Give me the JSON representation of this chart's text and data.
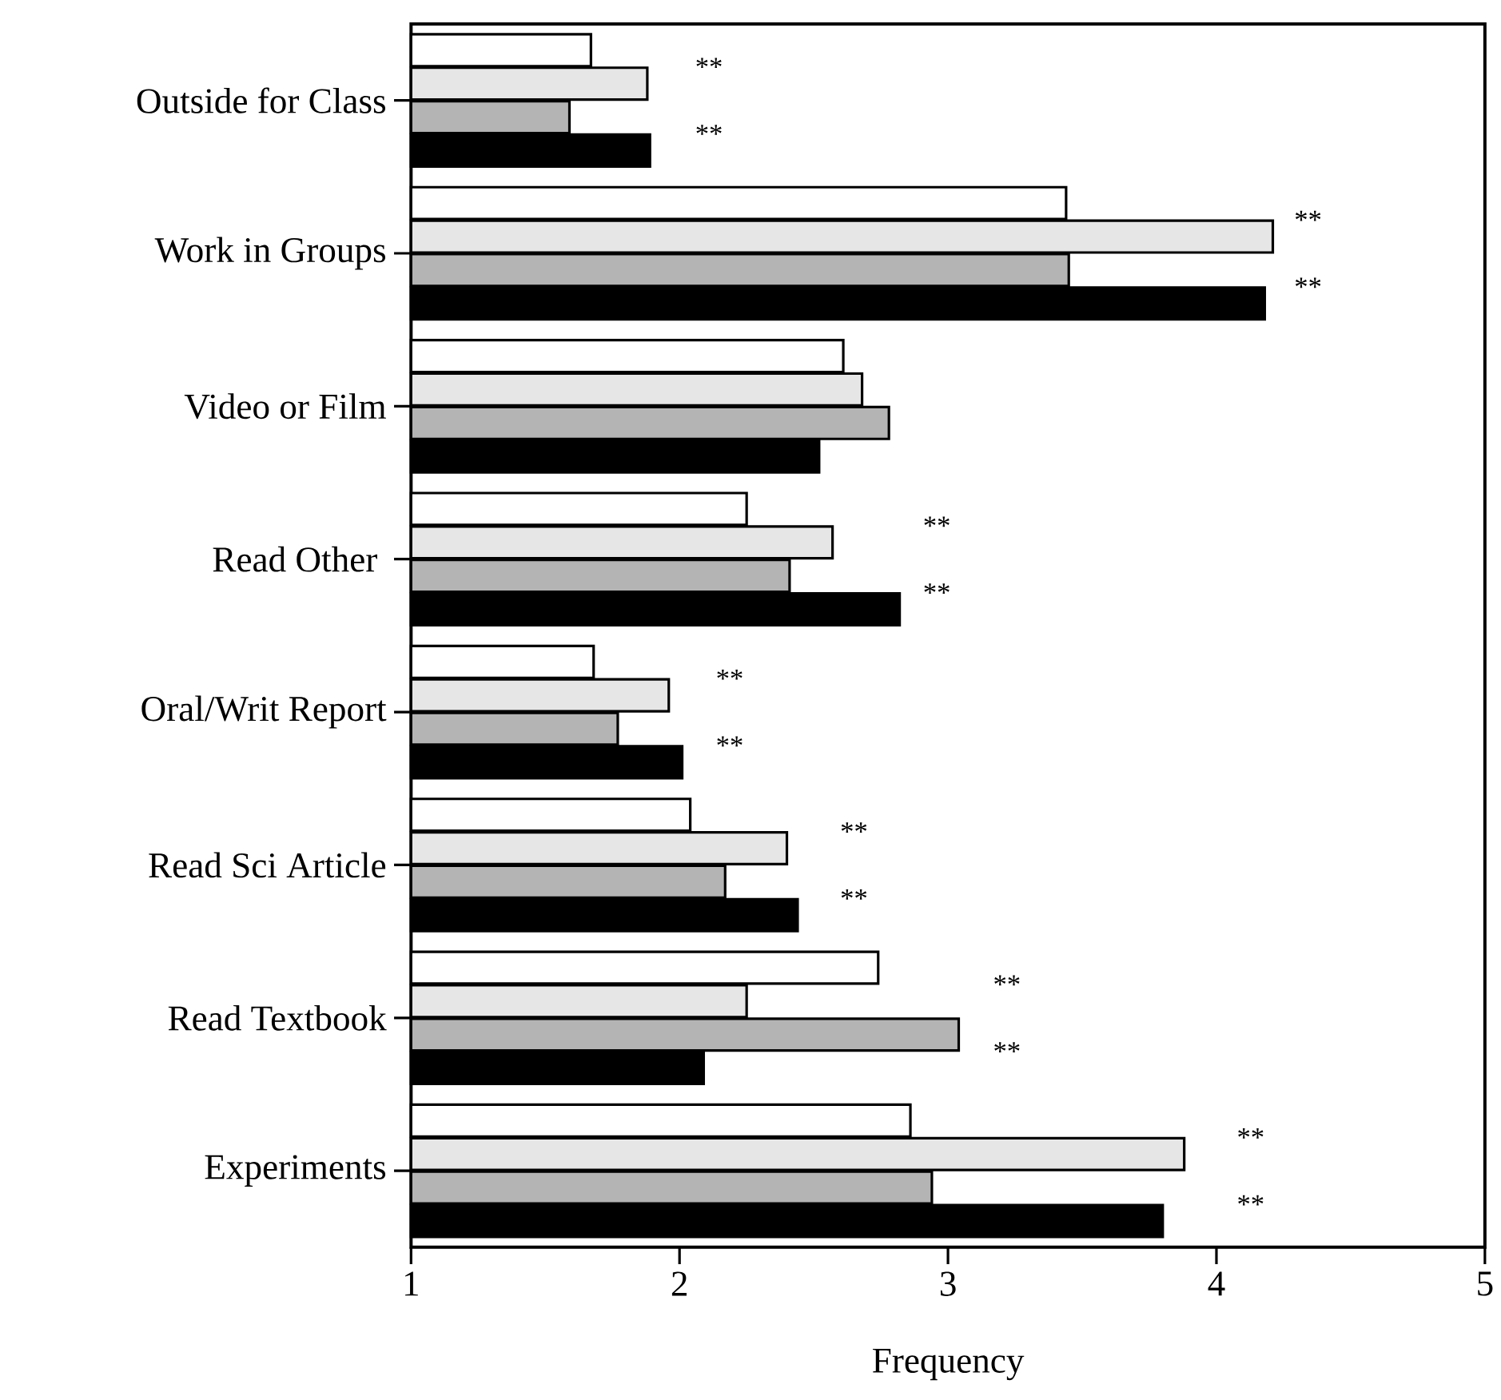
{
  "chart_data": {
    "type": "bar",
    "orientation": "horizontal",
    "xlabel": "Frequency",
    "categories": [
      "Outside for Class",
      "Work in Groups",
      "Video or Film",
      "Read Other ",
      "Oral/Writ Report",
      "Read Sci Article",
      "Read Textbook",
      "Experiments"
    ],
    "series": [
      {
        "color": "#ffffff",
        "values": [
          1.67,
          3.44,
          2.61,
          2.25,
          1.68,
          2.04,
          2.74,
          2.86
        ]
      },
      {
        "color": "#e6e6e6",
        "values": [
          1.88,
          4.21,
          2.68,
          2.57,
          1.96,
          2.4,
          2.25,
          3.88
        ]
      },
      {
        "color": "#b4b4b4",
        "values": [
          1.59,
          3.45,
          2.78,
          2.41,
          1.77,
          2.17,
          3.04,
          2.94
        ]
      },
      {
        "color": "#000000",
        "values": [
          1.89,
          4.18,
          2.52,
          2.82,
          2.01,
          2.44,
          2.09,
          3.8
        ]
      }
    ],
    "xlim": [
      1,
      5
    ],
    "xticks": [
      1,
      2,
      3,
      4,
      5
    ],
    "grid": false,
    "annotations": [
      "**",
      "**",
      "**",
      "**",
      "**",
      "**",
      "**",
      "**",
      "**",
      "**",
      "**",
      "**",
      "**",
      "**"
    ]
  }
}
